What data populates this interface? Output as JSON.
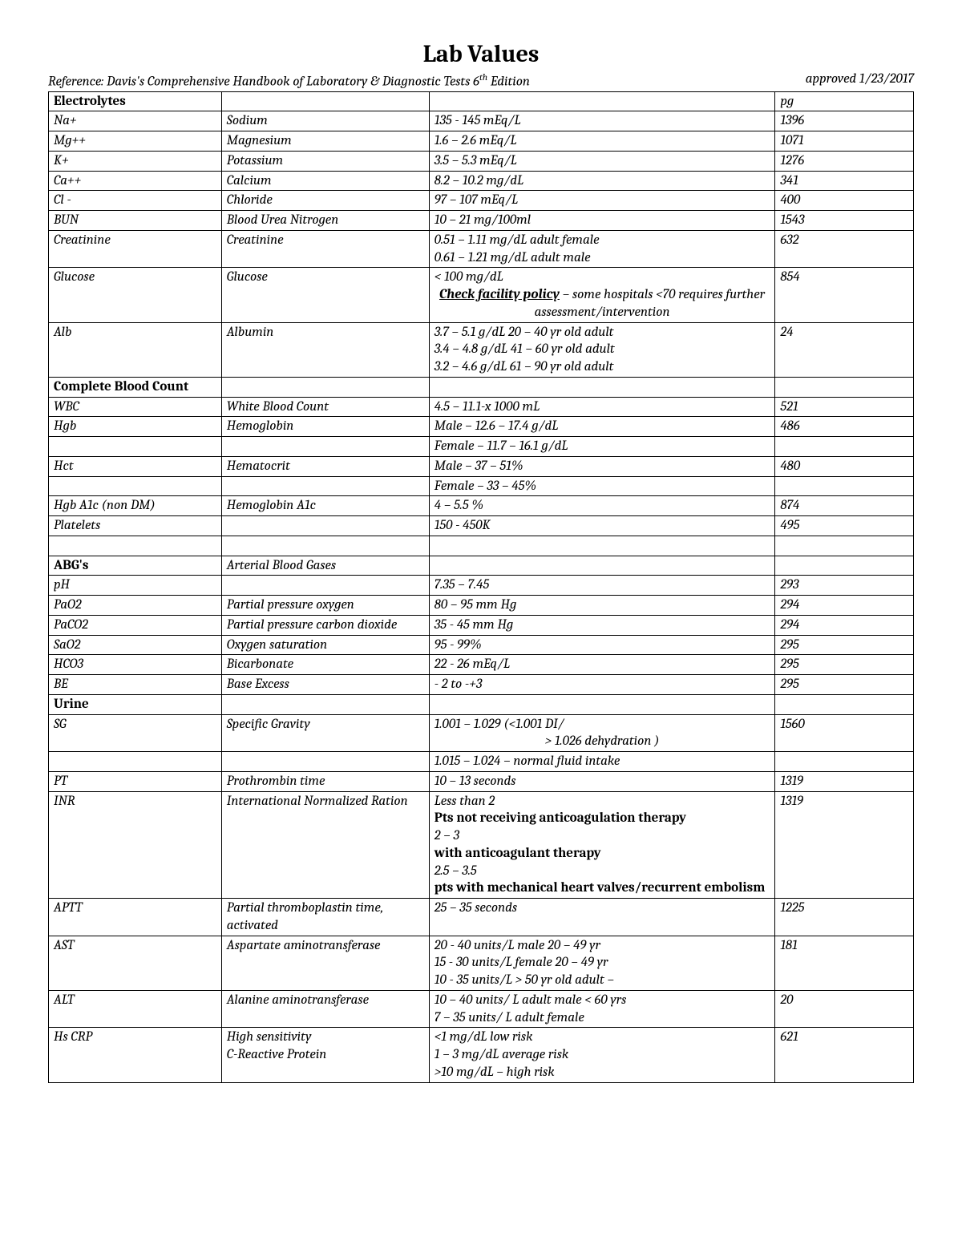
{
  "title": "Lab Values",
  "reference": "Reference: Davis's Comprehensive Handbook of Laboratory & Diagnostic Tests 6",
  "reference_sup": "th",
  "reference_tail": " Edition",
  "approved": "approved 1/23/2017",
  "pg": "pg",
  "sections": {
    "electrolytes": "Electrolytes",
    "cbc": "Complete Blood Count",
    "abg": "ABG's",
    "abg_desc": "Arterial Blood Gases",
    "urine": "Urine"
  },
  "rows": {
    "na": {
      "abbr": "Na+",
      "name": "Sodium",
      "range": "135 - 145 mEq/L",
      "pg": "1396"
    },
    "mg": {
      "abbr": "Mg++",
      "name": "Magnesium",
      "range": "1.6 – 2.6 mEq/L",
      "pg": "1071"
    },
    "k": {
      "abbr": "K+",
      "name": "Potassium",
      "range": "3.5 – 5.3 mEq/L",
      "pg": "1276"
    },
    "ca": {
      "abbr": "Ca++",
      "name": "Calcium",
      "range": "8.2 – 10.2 mg/dL",
      "pg": "341"
    },
    "cl": {
      "abbr": "Cl -",
      "name": "Chloride",
      "range": "97 – 107 mEq/L",
      "pg": "400"
    },
    "bun": {
      "abbr": "BUN",
      "name": "Blood Urea Nitrogen",
      "range": "10 – 21 mg/100ml",
      "pg": "1543"
    },
    "creat": {
      "abbr": "Creatinine",
      "name": "Creatinine",
      "l1": "0.51 – 1.11 mg/dL adult female",
      "l2": "0.61 – 1.21 mg/dL adult male",
      "pg": "632"
    },
    "glucose": {
      "abbr": "Glucose",
      "name": "Glucose",
      "l1": "< 100 mg/dL",
      "policy_label": "Check facility policy",
      "policy_tail": " – some hospitals <70 requires further assessment/intervention",
      "pg": "854"
    },
    "alb": {
      "abbr": "Alb",
      "name": "Albumin",
      "l1": "3.7 – 5.1 g/dL   20 – 40 yr old adult",
      "l2": "3.4 – 4.8 g/dL   41 – 60 yr old adult",
      "l3": "3.2 – 4.6 g/dL   61 – 90 yr old adult",
      "pg": "24"
    },
    "wbc": {
      "abbr": "WBC",
      "name": "White Blood Count",
      "range": "4.5 – 11.1-x 1000 mL",
      "pg": "521"
    },
    "hgb": {
      "abbr": "Hgb",
      "name": "Hemoglobin",
      "l1": "Male – 12.6  – 17.4 g/dL",
      "l2": "Female – 11.7 – 16.1 g/dL",
      "pg": "486"
    },
    "hct": {
      "abbr": "Hct",
      "name": "Hematocrit",
      "l1": "Male – 37 – 51%",
      "l2": "Female – 33 – 45%",
      "pg": "480"
    },
    "a1c": {
      "abbr": "Hgb A1c (non DM)",
      "name": "Hemoglobin A1c",
      "range": "4 – 5.5 %",
      "pg": "874"
    },
    "plt": {
      "abbr": "Platelets",
      "range": "150 - 450K",
      "pg": "495"
    },
    "ph": {
      "abbr": "pH",
      "range": "7.35 – 7.45",
      "pg": "293"
    },
    "pao2": {
      "abbr": "PaO2",
      "name": "Partial pressure oxygen",
      "range": "80 – 95 mm Hg",
      "pg": "294"
    },
    "paco2": {
      "abbr": "PaCO2",
      "name": "Partial pressure carbon dioxide",
      "range": "35 - 45 mm Hg",
      "pg": "294"
    },
    "sao2": {
      "abbr": "SaO2",
      "name": "Oxygen saturation",
      "range": "95 - 99%",
      "pg": "295"
    },
    "hco3": {
      "abbr": "HCO3",
      "name": "Bicarbonate",
      "range": "22 - 26 mEq/L",
      "pg": "295"
    },
    "be": {
      "abbr": "BE",
      "name": "Base Excess",
      "range": "- 2 to -+3",
      "pg": "295"
    },
    "sg": {
      "abbr": "SG",
      "name": "Specific Gravity",
      "l1": "1.001 – 1.029 (<1.001 DI/",
      "l2": " > 1.026   dehydration )",
      "l3": "1.015 – 1.024 – normal fluid intake",
      "pg": "1560"
    },
    "pt": {
      "abbr": "PT",
      "name": "Prothrombin time",
      "range": "10 – 13 seconds",
      "pg": "1319"
    },
    "inr": {
      "abbr": "INR",
      "name": "International Normalized Ration",
      "l1": "Less than 2",
      "b1": "Pts not receiving anticoagulation therapy",
      "l2": "2 – 3",
      "b2": "with anticoagulant therapy",
      "l3": "2.5 – 3.5",
      "b3": " pts with mechanical heart valves/recurrent embolism",
      "pg": "1319"
    },
    "aptt": {
      "abbr": "APTT",
      "name": "Partial thromboplastin time, activated",
      "range": "25  – 35 seconds",
      "pg": "1225"
    },
    "ast": {
      "abbr": "AST",
      "name": "Aspartate aminotransferase",
      "l1": "20 - 40 units/L  male 20 – 49 yr",
      "l2": "15 - 30 units/L female 20  – 49 yr",
      "l3": "10 - 35 units/L > 50 yr old adult   –",
      "pg": "181"
    },
    "alt": {
      "abbr": "ALT",
      "name": "Alanine aminotransferase",
      "l1": "10 – 40  units/ L adult male < 60 yrs",
      "l2": " 7   – 35  units/ L adult female",
      "pg": "20"
    },
    "crp": {
      "abbr": "Hs CRP",
      "name": "High sensitivity\nC-Reactive Protein",
      "l1": "<1 mg/dL  low risk",
      "l2": "1 – 3 mg/dL average risk",
      "l3": ">10 mg/dL – high risk",
      "pg": "621"
    }
  }
}
